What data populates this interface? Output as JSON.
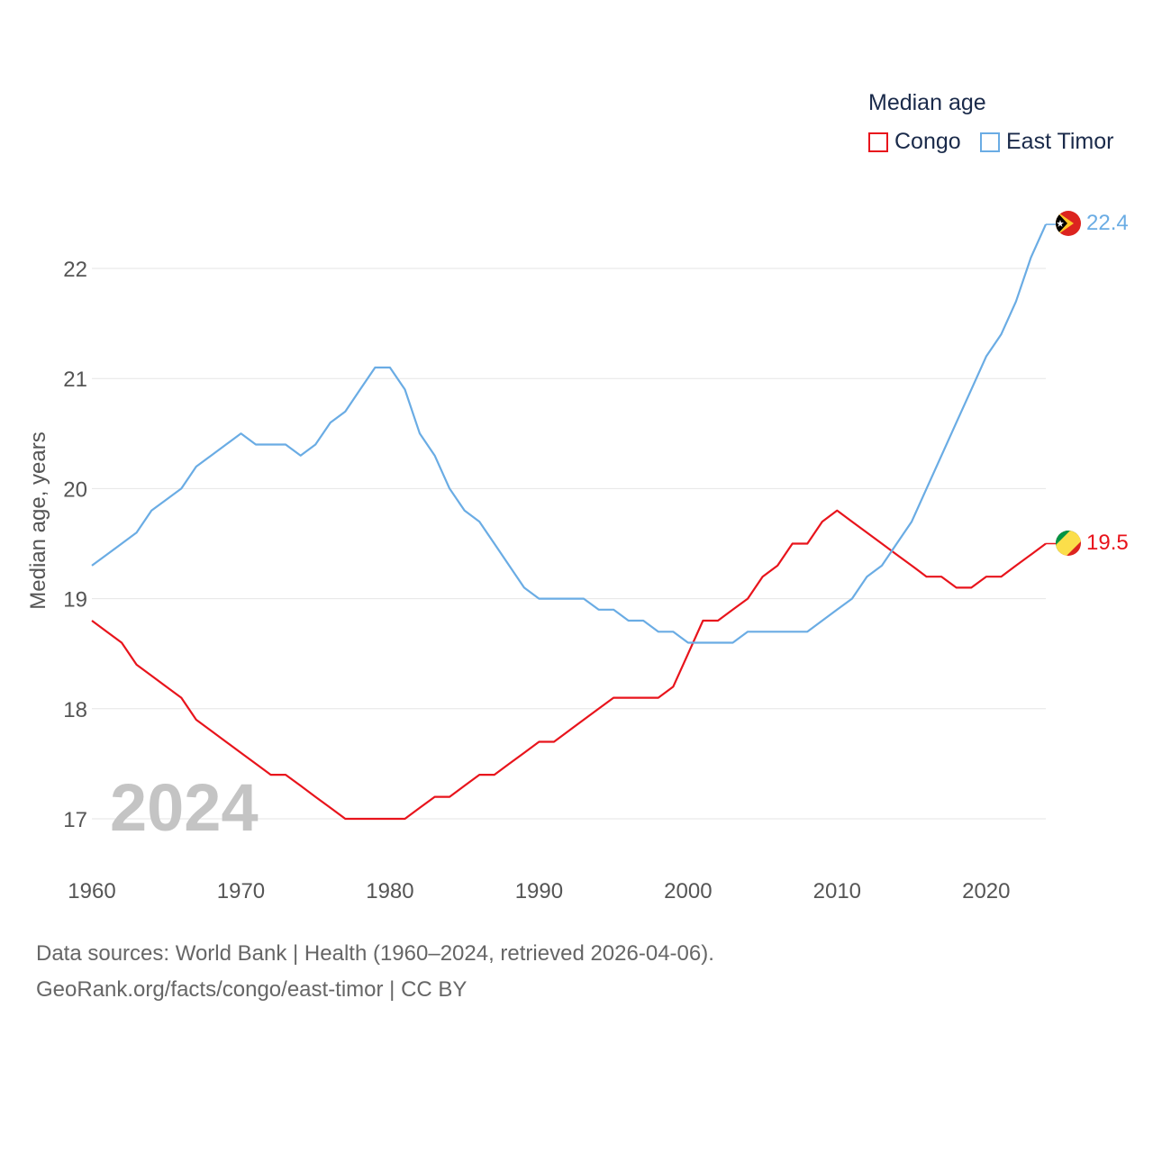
{
  "legend": {
    "title": "Median age",
    "items": [
      {
        "label": "Congo",
        "color": "#e8141c"
      },
      {
        "label": "East Timor",
        "color": "#6aace4"
      }
    ]
  },
  "footer": {
    "line1": "Data sources: World Bank | Health (1960–2024, retrieved 2026-04-06).",
    "line2": "GeoRank.org/facts/congo/east-timor | CC BY"
  },
  "chart_data": {
    "type": "line",
    "title": "Median age",
    "ylabel": "Median age, years",
    "xlabel": "",
    "year_label": "2024",
    "xlim": [
      1960,
      2024
    ],
    "ylim": [
      16.5,
      22.5
    ],
    "x_ticks": [
      1960,
      1970,
      1980,
      1990,
      2000,
      2010,
      2020
    ],
    "y_ticks": [
      17,
      18,
      19,
      20,
      21,
      22
    ],
    "grid": true,
    "legend_position": "top-right",
    "x": [
      1960,
      1961,
      1962,
      1963,
      1964,
      1965,
      1966,
      1967,
      1968,
      1969,
      1970,
      1971,
      1972,
      1973,
      1974,
      1975,
      1976,
      1977,
      1978,
      1979,
      1980,
      1981,
      1982,
      1983,
      1984,
      1985,
      1986,
      1987,
      1988,
      1989,
      1990,
      1991,
      1992,
      1993,
      1994,
      1995,
      1996,
      1997,
      1998,
      1999,
      2000,
      2001,
      2002,
      2003,
      2004,
      2005,
      2006,
      2007,
      2008,
      2009,
      2010,
      2011,
      2012,
      2013,
      2014,
      2015,
      2016,
      2017,
      2018,
      2019,
      2020,
      2021,
      2022,
      2023,
      2024
    ],
    "series": [
      {
        "name": "Congo",
        "color": "#e8141c",
        "end_label": "19.5",
        "values": [
          18.8,
          18.7,
          18.6,
          18.4,
          18.3,
          18.2,
          18.1,
          17.9,
          17.8,
          17.7,
          17.6,
          17.5,
          17.4,
          17.4,
          17.3,
          17.2,
          17.1,
          17.0,
          17.0,
          17.0,
          17.0,
          17.0,
          17.1,
          17.2,
          17.2,
          17.3,
          17.4,
          17.4,
          17.5,
          17.6,
          17.7,
          17.7,
          17.8,
          17.9,
          18.0,
          18.1,
          18.1,
          18.1,
          18.1,
          18.2,
          18.5,
          18.8,
          18.8,
          18.9,
          19.0,
          19.2,
          19.3,
          19.5,
          19.5,
          19.7,
          19.8,
          19.7,
          19.6,
          19.5,
          19.4,
          19.3,
          19.2,
          19.2,
          19.1,
          19.1,
          19.2,
          19.2,
          19.3,
          19.4,
          19.5
        ]
      },
      {
        "name": "East Timor",
        "color": "#6aace4",
        "end_label": "22.4",
        "values": [
          19.3,
          19.4,
          19.5,
          19.6,
          19.8,
          19.9,
          20.0,
          20.2,
          20.3,
          20.4,
          20.5,
          20.4,
          20.4,
          20.4,
          20.3,
          20.4,
          20.6,
          20.7,
          20.9,
          21.1,
          21.1,
          20.9,
          20.5,
          20.3,
          20.0,
          19.8,
          19.7,
          19.5,
          19.3,
          19.1,
          19.0,
          19.0,
          19.0,
          19.0,
          18.9,
          18.9,
          18.8,
          18.8,
          18.7,
          18.7,
          18.6,
          18.6,
          18.6,
          18.6,
          18.7,
          18.7,
          18.7,
          18.7,
          18.7,
          18.8,
          18.9,
          19.0,
          19.2,
          19.3,
          19.5,
          19.7,
          20.0,
          20.3,
          20.6,
          20.9,
          21.2,
          21.4,
          21.7,
          22.1,
          22.4
        ]
      }
    ]
  }
}
